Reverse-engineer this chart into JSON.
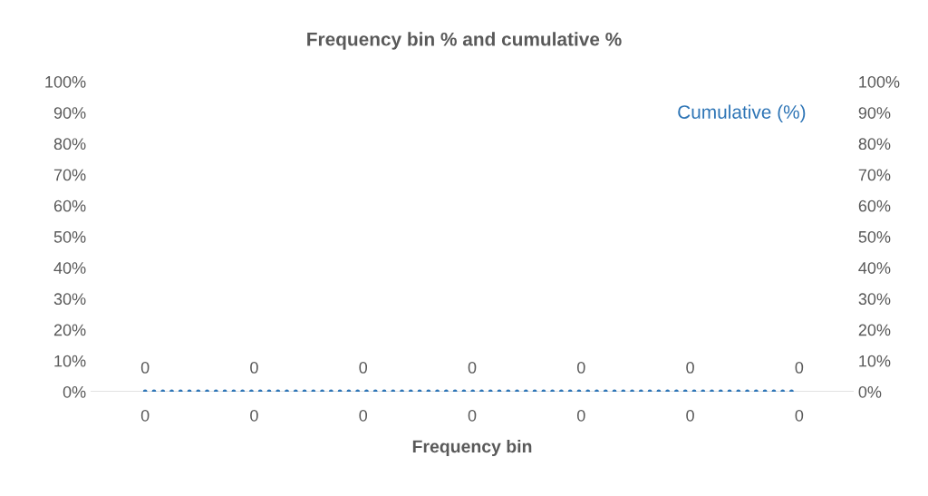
{
  "chart_data": {
    "type": "bar",
    "title": "Frequency bin % and cumulative %",
    "xlabel": "Frequency bin",
    "categories": [
      "0",
      "0",
      "0",
      "0",
      "0",
      "0",
      "0"
    ],
    "series": [
      {
        "color": "#5b9bd5",
        "values": [
          0,
          0,
          0,
          0,
          0,
          0,
          0
        ],
        "data_labels": true
      },
      {
        "type": "line",
        "name": "Cumulative (%)",
        "color": "#2e75b6",
        "line_style": "dotted",
        "values": [
          0,
          0,
          0,
          0,
          0,
          0,
          0
        ]
      }
    ],
    "ylim": [
      0,
      100
    ],
    "yticks": [
      {
        "value": 0,
        "label": "0%"
      },
      {
        "value": 10,
        "label": "10%"
      },
      {
        "value": 20,
        "label": "20%"
      },
      {
        "value": 30,
        "label": "30%"
      },
      {
        "value": 40,
        "label": "40%"
      },
      {
        "value": 50,
        "label": "50%"
      },
      {
        "value": 60,
        "label": "60%"
      },
      {
        "value": 70,
        "label": "70%"
      },
      {
        "value": 80,
        "label": "80%"
      },
      {
        "value": 90,
        "label": "90%"
      },
      {
        "value": 100,
        "label": "100%"
      }
    ],
    "y2lim": [
      0,
      100
    ],
    "y2ticks": [
      {
        "value": 0,
        "label": "0%"
      },
      {
        "value": 10,
        "label": "10%"
      },
      {
        "value": 20,
        "label": "20%"
      },
      {
        "value": 30,
        "label": "30%"
      },
      {
        "value": 40,
        "label": "40%"
      },
      {
        "value": 50,
        "label": "50%"
      },
      {
        "value": 60,
        "label": "60%"
      },
      {
        "value": 70,
        "label": "70%"
      },
      {
        "value": 80,
        "label": "80%"
      },
      {
        "value": 90,
        "label": "90%"
      },
      {
        "value": 100,
        "label": "100%"
      }
    ],
    "grid": false,
    "legend": "top right"
  }
}
